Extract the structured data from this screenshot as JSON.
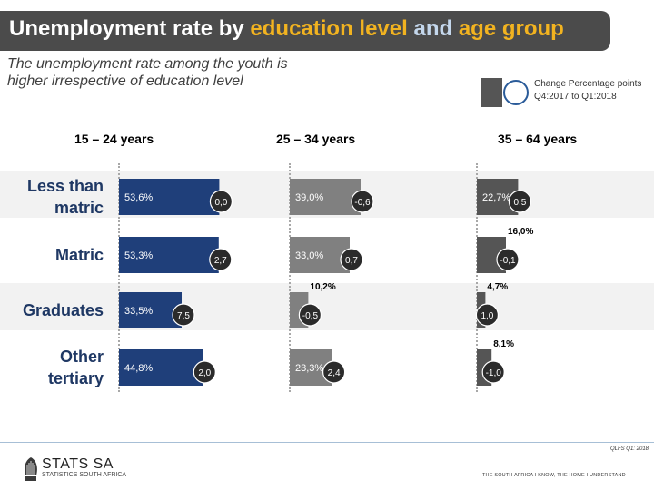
{
  "header": {
    "title_part1": "Unemployment rate by ",
    "title_part2": "education level",
    "title_part3": " and ",
    "title_part4": "age group",
    "subtitle": "The unemployment rate among the youth is higher irrespective of education level"
  },
  "legend": {
    "line1": "Change Percentage points",
    "line2": "Q4:2017 to Q1:2018"
  },
  "footer": {
    "source": "QLFS Q1: 2018",
    "logo_name": "STATS SA",
    "logo_sub": "STATISTICS SOUTH AFRICA",
    "tagline": "THE SOUTH AFRICA I KNOW, THE HOME I UNDERSTAND"
  },
  "colors": {
    "youth": "#1f3f7a",
    "middle": "#808080",
    "older": "#555555",
    "header_text_youth": "#1f3864",
    "header_text_middle": "#7f7f7f",
    "header_text_older": "#000000"
  },
  "chart_data": {
    "type": "bar",
    "orientation": "horizontal",
    "categories": [
      "Less than matric",
      "Matric",
      "Graduates",
      "Other tertiary"
    ],
    "category_lines": [
      [
        "Less than",
        "matric"
      ],
      [
        "Matric"
      ],
      [
        "Graduates"
      ],
      [
        "Other",
        "tertiary"
      ]
    ],
    "series": [
      {
        "name": "15 – 24 years",
        "values": [
          53.6,
          53.3,
          33.5,
          44.8
        ],
        "value_labels": [
          "53,6%",
          "53,3%",
          "33,5%",
          "44,8%"
        ],
        "change": [
          0.0,
          2.7,
          7.5,
          2.0
        ],
        "change_labels": [
          "0,0",
          "2,7",
          "7,5",
          "2,0"
        ]
      },
      {
        "name": "25 – 34 years",
        "values": [
          39.0,
          33.0,
          10.2,
          23.3
        ],
        "value_labels": [
          "39,0%",
          "33,0%",
          "10,2%",
          "23,3%"
        ],
        "change": [
          -0.6,
          0.7,
          -0.5,
          2.4
        ],
        "change_labels": [
          "-0,6",
          "0,7",
          "-0,5",
          "2,4"
        ]
      },
      {
        "name": "35 – 64 years",
        "values": [
          22.7,
          16.0,
          4.7,
          8.1
        ],
        "value_labels": [
          "22,7%",
          "16,0%",
          "4,7%",
          "8,1%"
        ],
        "change": [
          0.5,
          -0.1,
          1.0,
          -1.0
        ],
        "change_labels": [
          "0,5",
          "-0,1",
          "1,0",
          "-1,0"
        ]
      }
    ],
    "unit": "%",
    "grid": false,
    "legend_position": "top-right"
  }
}
